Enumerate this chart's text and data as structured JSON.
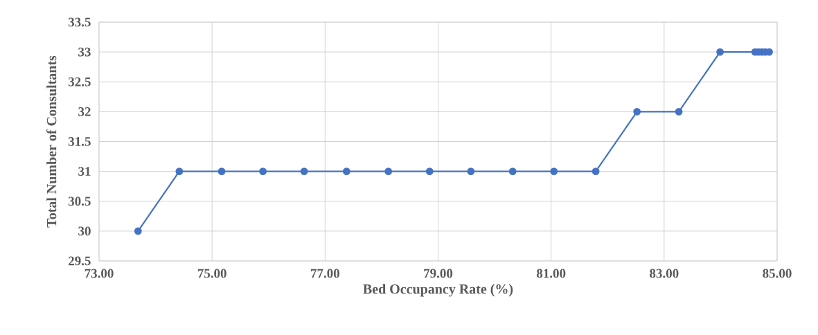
{
  "chart_data": {
    "type": "line",
    "xlabel": "Bed Occupancy Rate (%)",
    "ylabel": "Total Number of Consultants",
    "x": [
      73.69,
      74.42,
      75.17,
      75.9,
      76.63,
      77.38,
      78.12,
      78.85,
      79.58,
      80.32,
      81.05,
      81.79,
      82.52,
      83.26,
      83.99,
      84.61,
      84.67,
      84.73,
      84.79,
      84.86
    ],
    "series": [
      {
        "color": "#4472c4",
        "values": [
          30,
          31,
          31,
          31,
          31,
          31,
          31,
          31,
          31,
          31,
          31,
          31,
          32,
          32,
          33,
          33,
          33,
          33,
          33,
          33
        ]
      }
    ],
    "xlim": [
      73,
      85
    ],
    "ylim": [
      29.5,
      33.5
    ],
    "xticks": [
      {
        "value": 73,
        "label": "73.00"
      },
      {
        "value": 75,
        "label": "75.00"
      },
      {
        "value": 77,
        "label": "77.00"
      },
      {
        "value": 79,
        "label": "79.00"
      },
      {
        "value": 81,
        "label": "81.00"
      },
      {
        "value": 83,
        "label": "83.00"
      },
      {
        "value": 85,
        "label": "85.00"
      }
    ],
    "yticks": [
      29.5,
      30,
      30.5,
      31,
      31.5,
      32,
      32.5,
      33,
      33.5
    ],
    "grid": true,
    "marker": "circle",
    "line_style": "solid"
  }
}
